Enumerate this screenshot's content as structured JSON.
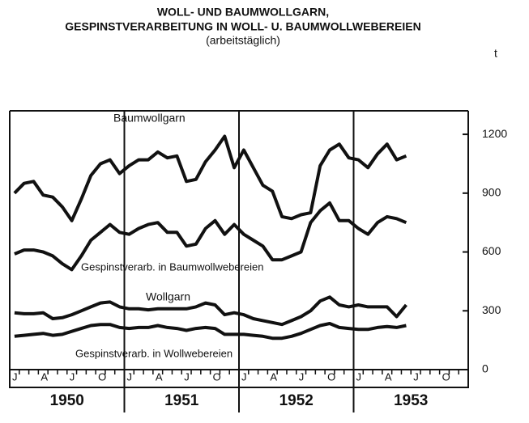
{
  "chart_data": {
    "type": "line",
    "title": [
      "WOLL- UND BAUMWOLLGARN,",
      "GESPINSTVERARBEITUNG IN WOLL- U. BAUMWOLLWEBEREIEN"
    ],
    "subtitle": "(arbeitstäglich)",
    "y_axis_label": "t",
    "categories": [
      "J",
      null,
      null,
      "A",
      null,
      null,
      "J",
      null,
      null,
      "O",
      null,
      null,
      "J",
      null,
      null,
      "A",
      null,
      null,
      "J",
      null,
      null,
      "O",
      null,
      null,
      "J",
      null,
      null,
      "A",
      null,
      null,
      "J",
      null,
      null,
      "O",
      null,
      null,
      "J",
      null,
      null,
      "A",
      null,
      null,
      "J",
      null,
      null,
      "O",
      null,
      null
    ],
    "years": [
      "1950",
      "1951",
      "1952",
      "1953"
    ],
    "ylim": [
      0,
      1320
    ],
    "yticks": [
      0,
      300,
      600,
      900,
      1200
    ],
    "series": [
      {
        "name": "Baumwollgarn",
        "color": "#111111",
        "values": [
          900,
          950,
          960,
          890,
          880,
          830,
          760,
          870,
          990,
          1050,
          1070,
          1000,
          1040,
          1070,
          1070,
          1110,
          1080,
          1090,
          960,
          970,
          1060,
          1120,
          1190,
          1030,
          1120,
          1030,
          940,
          910,
          780,
          770,
          790,
          800,
          1040,
          1120,
          1150,
          1080,
          1070,
          1030,
          1100,
          1150,
          1070,
          1090,
          null,
          null,
          null,
          null,
          null,
          null
        ]
      },
      {
        "name": "Gespinstverarb. in Baumwollwebereien",
        "color": "#111111",
        "values": [
          590,
          610,
          610,
          600,
          580,
          540,
          510,
          580,
          660,
          700,
          740,
          700,
          690,
          720,
          740,
          750,
          700,
          700,
          630,
          640,
          720,
          760,
          690,
          740,
          690,
          660,
          630,
          560,
          560,
          580,
          600,
          750,
          810,
          850,
          760,
          760,
          720,
          690,
          750,
          780,
          770,
          750,
          null,
          null,
          null,
          null,
          null,
          null
        ]
      },
      {
        "name": "Wollgarn",
        "color": "#111111",
        "values": [
          290,
          285,
          285,
          290,
          260,
          265,
          280,
          300,
          320,
          340,
          345,
          320,
          310,
          310,
          305,
          310,
          310,
          310,
          310,
          320,
          340,
          330,
          280,
          290,
          280,
          260,
          250,
          240,
          230,
          250,
          270,
          300,
          350,
          370,
          330,
          320,
          330,
          320,
          320,
          320,
          270,
          330,
          null,
          null,
          null,
          null,
          null,
          null
        ]
      },
      {
        "name": "Gespinstverarb. in Wollwebereien",
        "color": "#111111",
        "values": [
          170,
          175,
          180,
          185,
          175,
          180,
          195,
          210,
          225,
          230,
          230,
          215,
          210,
          215,
          215,
          225,
          215,
          210,
          200,
          210,
          215,
          210,
          180,
          180,
          180,
          175,
          170,
          160,
          160,
          170,
          185,
          205,
          225,
          235,
          215,
          210,
          205,
          205,
          215,
          220,
          215,
          225,
          null,
          null,
          null,
          null,
          null,
          null
        ]
      }
    ]
  }
}
